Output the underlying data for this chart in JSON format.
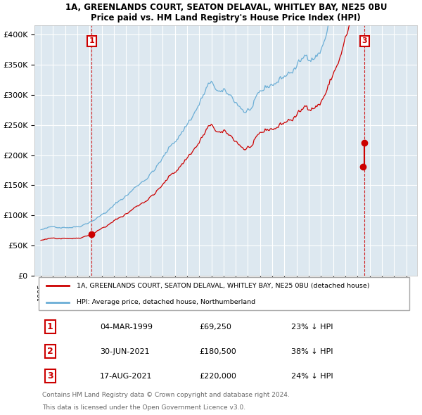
{
  "title_line1": "1A, GREENLANDS COURT, SEATON DELAVAL, WHITLEY BAY, NE25 0BU",
  "title_line2": "Price paid vs. HM Land Registry's House Price Index (HPI)",
  "bg_color": "#dde8f0",
  "grid_color": "#ffffff",
  "red_color": "#cc0000",
  "blue_color": "#6baed6",
  "sale1_date": "04-MAR-1999",
  "sale1_price": 69250,
  "sale1_hpi": "23% ↓ HPI",
  "sale2_date": "30-JUN-2021",
  "sale2_price": 180500,
  "sale2_hpi": "38% ↓ HPI",
  "sale3_date": "17-AUG-2021",
  "sale3_price": 220000,
  "sale3_hpi": "24% ↓ HPI",
  "legend_label_red": "1A, GREENLANDS COURT, SEATON DELAVAL, WHITLEY BAY, NE25 0BU (detached house)",
  "legend_label_blue": "HPI: Average price, detached house, Northumberland",
  "footer_line1": "Contains HM Land Registry data © Crown copyright and database right 2024.",
  "footer_line2": "This data is licensed under the Open Government Licence v3.0.",
  "yticks": [
    0,
    50000,
    100000,
    150000,
    200000,
    250000,
    300000,
    350000,
    400000
  ],
  "ylabels": [
    "£0",
    "£50K",
    "£100K",
    "£150K",
    "£200K",
    "£250K",
    "£300K",
    "£350K",
    "£400K"
  ],
  "start_year": 1995,
  "end_year": 2025
}
